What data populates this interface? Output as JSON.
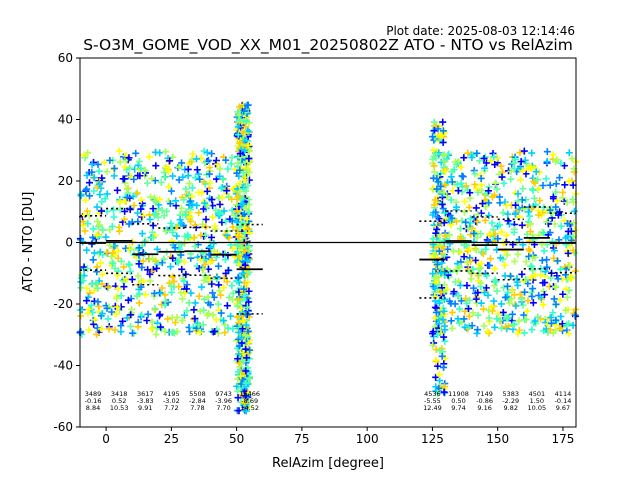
{
  "plot_date": "Plot date: 2025-08-03 12:14:46",
  "chart_data": {
    "type": "scatter",
    "title": "S-O3M_GOME_VOD_XX_M01_20250802Z ATO - NTO vs RelAzim",
    "xlabel": "RelAzim [degree]",
    "ylabel": "ATO - NTO [DU]",
    "xlim": [
      -10,
      180
    ],
    "ylim": [
      -60,
      60
    ],
    "xticks": [
      0,
      25,
      50,
      75,
      100,
      125,
      150,
      175
    ],
    "yticks": [
      -60,
      -40,
      -20,
      0,
      20,
      40,
      60
    ],
    "grid": false,
    "reference_line_y": 0,
    "point_colors": [
      "#0000ff",
      "#0080ff",
      "#00ccff",
      "#33ffcc",
      "#66ff99",
      "#aaff55",
      "#ffff00",
      "#ffcc00"
    ],
    "bin_width": 10,
    "bins": [
      {
        "center": -5,
        "count": "3489",
        "mean": -0.16,
        "std": 8.84,
        "mean_label": "-0.16",
        "std_label": "8.84"
      },
      {
        "center": 5,
        "count": "3418",
        "mean": 0.52,
        "std": 10.53,
        "mean_label": "0.52",
        "std_label": "10.53"
      },
      {
        "center": 15,
        "count": "3617",
        "mean": -3.83,
        "std": 9.91,
        "mean_label": "-3.83",
        "std_label": "9.91"
      },
      {
        "center": 25,
        "count": "4195",
        "mean": -3.02,
        "std": 7.72,
        "mean_label": "-3.02",
        "std_label": "7.72"
      },
      {
        "center": 35,
        "count": "5508",
        "mean": -2.84,
        "std": 7.78,
        "mean_label": "-2.84",
        "std_label": "7.78"
      },
      {
        "center": 45,
        "count": "9743",
        "mean": -3.96,
        "std": 7.7,
        "mean_label": "-3.96",
        "std_label": "7.70"
      },
      {
        "center": 55,
        "count": "16466",
        "mean": -8.69,
        "std": 14.52,
        "mean_label": "-8.69",
        "std_label": "14.52"
      },
      {
        "center": 125,
        "count": "4536",
        "mean": -5.55,
        "std": 12.49,
        "mean_label": "-5.55",
        "std_label": "12.49"
      },
      {
        "center": 135,
        "count": "11908",
        "mean": 0.5,
        "std": 9.74,
        "mean_label": "0.50",
        "std_label": "9.74"
      },
      {
        "center": 145,
        "count": "7149",
        "mean": -0.86,
        "std": 9.16,
        "mean_label": "-0.86",
        "std_label": "9.16"
      },
      {
        "center": 155,
        "count": "5383",
        "mean": -2.29,
        "std": 9.82,
        "mean_label": "-2.29",
        "std_label": "9.82"
      },
      {
        "center": 165,
        "count": "4501",
        "mean": 1.5,
        "std": 10.05,
        "mean_label": "1.50",
        "std_label": "10.05"
      },
      {
        "center": 175,
        "count": "4114",
        "mean": -0.14,
        "std": 9.67,
        "mean_label": "-0.14",
        "std_label": "9.67"
      }
    ],
    "clusters": [
      {
        "x_range": [
          -10,
          50
        ],
        "y_range": [
          -30,
          30
        ],
        "density": 700
      },
      {
        "x_range": [
          50,
          55
        ],
        "y_range": [
          -55,
          45
        ],
        "density": 500
      },
      {
        "x_range": [
          125,
          180
        ],
        "y_range": [
          -30,
          30
        ],
        "density": 700
      },
      {
        "x_range": [
          125,
          130
        ],
        "y_range": [
          -50,
          40
        ],
        "density": 150
      }
    ]
  }
}
